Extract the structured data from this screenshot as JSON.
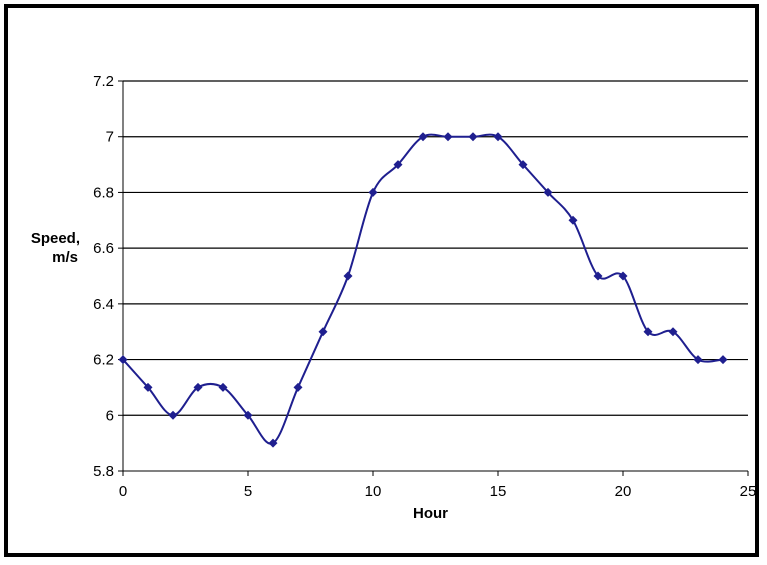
{
  "chart_data": {
    "type": "line",
    "xlabel": "Hour",
    "ylabel_lines": [
      "Speed,",
      "m/s"
    ],
    "xlim": [
      0,
      25
    ],
    "ylim": [
      5.8,
      7.2
    ],
    "x_ticks": [
      0,
      5,
      10,
      15,
      20,
      25
    ],
    "y_ticks": [
      5.8,
      6,
      6.2,
      6.4,
      6.6,
      6.8,
      7,
      7.2
    ],
    "x_tick_labels": [
      "0",
      "5",
      "10",
      "15",
      "20",
      "25"
    ],
    "y_tick_labels": [
      "5.8",
      "6",
      "6.2",
      "6.4",
      "6.6",
      "6.8",
      "7",
      "7.2"
    ],
    "grid": "horizontal",
    "legend": "none",
    "colors": {
      "series": "#1f1f8f",
      "grid": "#000000",
      "axis": "#000000"
    },
    "series": [
      {
        "x": [
          0,
          1,
          2,
          3,
          4,
          5,
          6,
          7,
          8,
          9,
          10,
          11,
          12,
          13,
          14,
          15,
          16,
          17,
          18,
          19,
          20,
          21,
          22,
          23,
          24
        ],
        "values": [
          6.2,
          6.1,
          6.0,
          6.1,
          6.1,
          6.0,
          5.9,
          6.1,
          6.3,
          6.5,
          6.8,
          6.9,
          7.0,
          7.0,
          7.0,
          7.0,
          6.9,
          6.8,
          6.7,
          6.5,
          6.5,
          6.3,
          6.3,
          6.2,
          6.2
        ]
      }
    ]
  }
}
